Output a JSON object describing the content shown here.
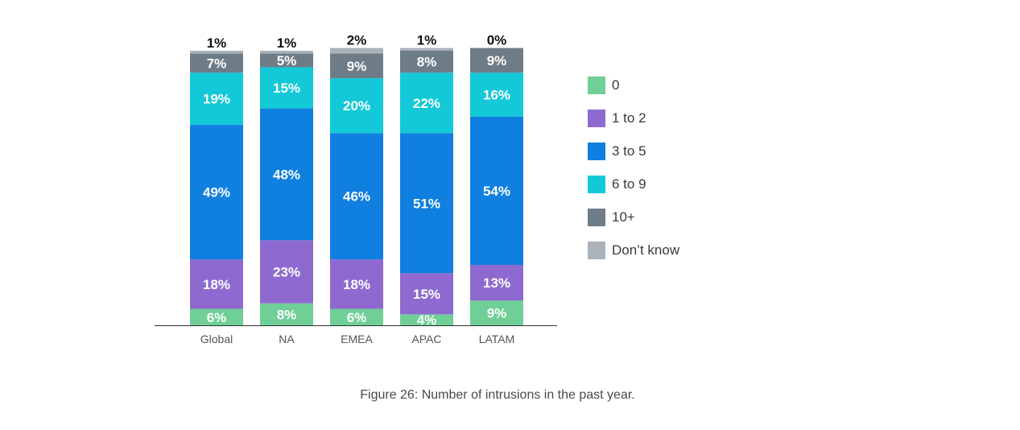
{
  "chart_data": {
    "type": "bar",
    "stacked": true,
    "categories": [
      "Global",
      "NA",
      "EMEA",
      "APAC",
      "LATAM"
    ],
    "series": [
      {
        "name": "0",
        "color": "#6fcf97",
        "values": [
          6,
          8,
          6,
          4,
          9
        ]
      },
      {
        "name": "1 to 2",
        "color": "#8e6ad0",
        "values": [
          18,
          23,
          18,
          15,
          13
        ]
      },
      {
        "name": "3 to 5",
        "color": "#0f7fe0",
        "values": [
          49,
          48,
          46,
          51,
          54
        ]
      },
      {
        "name": "6 to 9",
        "color": "#13c9d8",
        "values": [
          19,
          15,
          20,
          22,
          16
        ]
      },
      {
        "name": "10+",
        "color": "#6e7c87",
        "values": [
          7,
          5,
          9,
          8,
          9
        ]
      },
      {
        "name": "Don’t know",
        "color": "#aab2ba",
        "values": [
          1,
          1,
          2,
          1,
          0
        ]
      }
    ],
    "ylim": [
      0,
      100
    ],
    "value_labels": [
      "%"
    ],
    "legend_position": "right",
    "grid": false
  },
  "caption": "Figure 26: Number of intrusions in the past year."
}
